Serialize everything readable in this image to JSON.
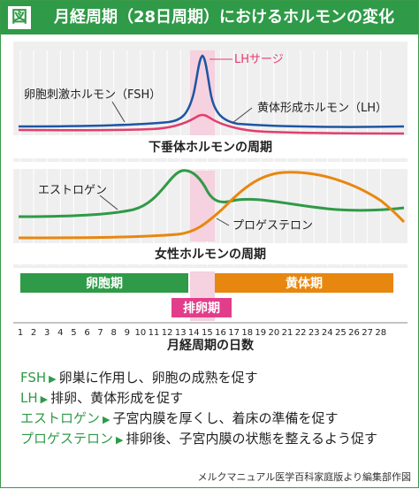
{
  "header": {
    "badge": "図",
    "title": "月経周期（28日周期）におけるホルモンの変化"
  },
  "panel_pituitary": {
    "title": "下垂体ホルモンの周期",
    "fsh_label": "卵胞刺激ホルモン（FSH）",
    "lh_label": "黄体形成ホルモン（LH）",
    "lh_surge_label": "LHサージ"
  },
  "panel_ovarian": {
    "title": "女性ホルモンの周期",
    "estrogen_label": "エストロゲン",
    "progesterone_label": "プロゲステロン"
  },
  "phases": {
    "follicular": "卵胞期",
    "luteal": "黄体期",
    "ovulation": "排卵期"
  },
  "axis": {
    "label": "月経周期の日数",
    "days": [
      "1",
      "2",
      "3",
      "4",
      "5",
      "6",
      "7",
      "8",
      "9",
      "10",
      "11",
      "12",
      "13",
      "14",
      "15",
      "16",
      "17",
      "18",
      "19",
      "20",
      "21",
      "22",
      "23",
      "24",
      "25",
      "26",
      "27",
      "28"
    ]
  },
  "colors": {
    "green": "#2f9a47",
    "orange": "#e8870f",
    "pink": "#e23d6e",
    "blue": "#1d56a3",
    "band": "#f6d1df",
    "panel_bg": "#efefef"
  },
  "legend": [
    {
      "term": "FSH",
      "desc": "卵巣に作用し、卵胞の成熟を促す"
    },
    {
      "term": "LH",
      "desc": "排卵、黄体形成を促す"
    },
    {
      "term": "エストロゲン",
      "desc": "子宮内膜を厚くし、着床の準備を促す"
    },
    {
      "term": "プロゲステロン",
      "desc": "排卵後、子宮内膜の状態を整えるよう促す"
    }
  ],
  "source": "メルクマニュアル医学百科家庭版より編集部作図"
}
